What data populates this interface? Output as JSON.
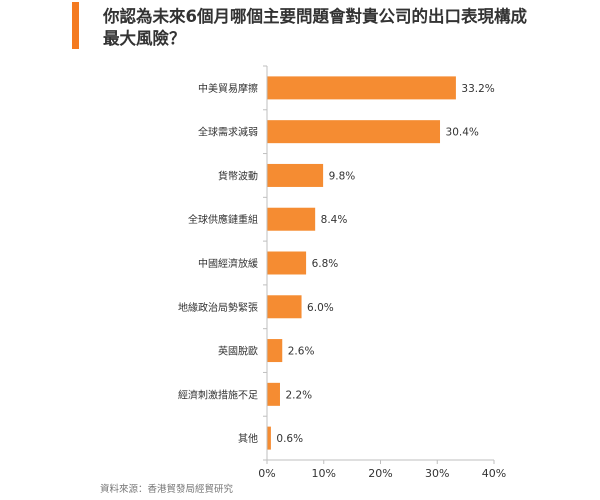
{
  "title": "你認為未來6個月哪個主要問題會對貴公司的出口表現構成最大風險？",
  "source": "資料來源：香港貿發局經貿研究",
  "colors": {
    "bar": "#F58C32",
    "accent": "#F47A20",
    "axis": "#BFBFBF"
  },
  "chart_data": {
    "type": "bar",
    "orientation": "horizontal",
    "title": "你認為未來6個月哪個主要問題會對貴公司的出口表現構成最大風險？",
    "categories": [
      "中美貿易摩擦",
      "全球需求減弱",
      "貨幣波動",
      "全球供應鏈重組",
      "中國經濟放緩",
      "地緣政治局勢緊張",
      "英國脫歐",
      "經濟刺激措施不足",
      "其他"
    ],
    "values": [
      33.2,
      30.4,
      9.8,
      8.4,
      6.8,
      6.0,
      2.6,
      2.2,
      0.6
    ],
    "data_labels": [
      "33.2%",
      "30.4%",
      "9.8%",
      "8.4%",
      "6.8%",
      "6.0%",
      "2.6%",
      "2.2%",
      "0.6%"
    ],
    "xlim": [
      0,
      40
    ],
    "xticks": [
      "0%",
      "10%",
      "20%",
      "30%",
      "40%"
    ],
    "xlabel": "",
    "ylabel": "",
    "grid": false,
    "legend": "none"
  }
}
